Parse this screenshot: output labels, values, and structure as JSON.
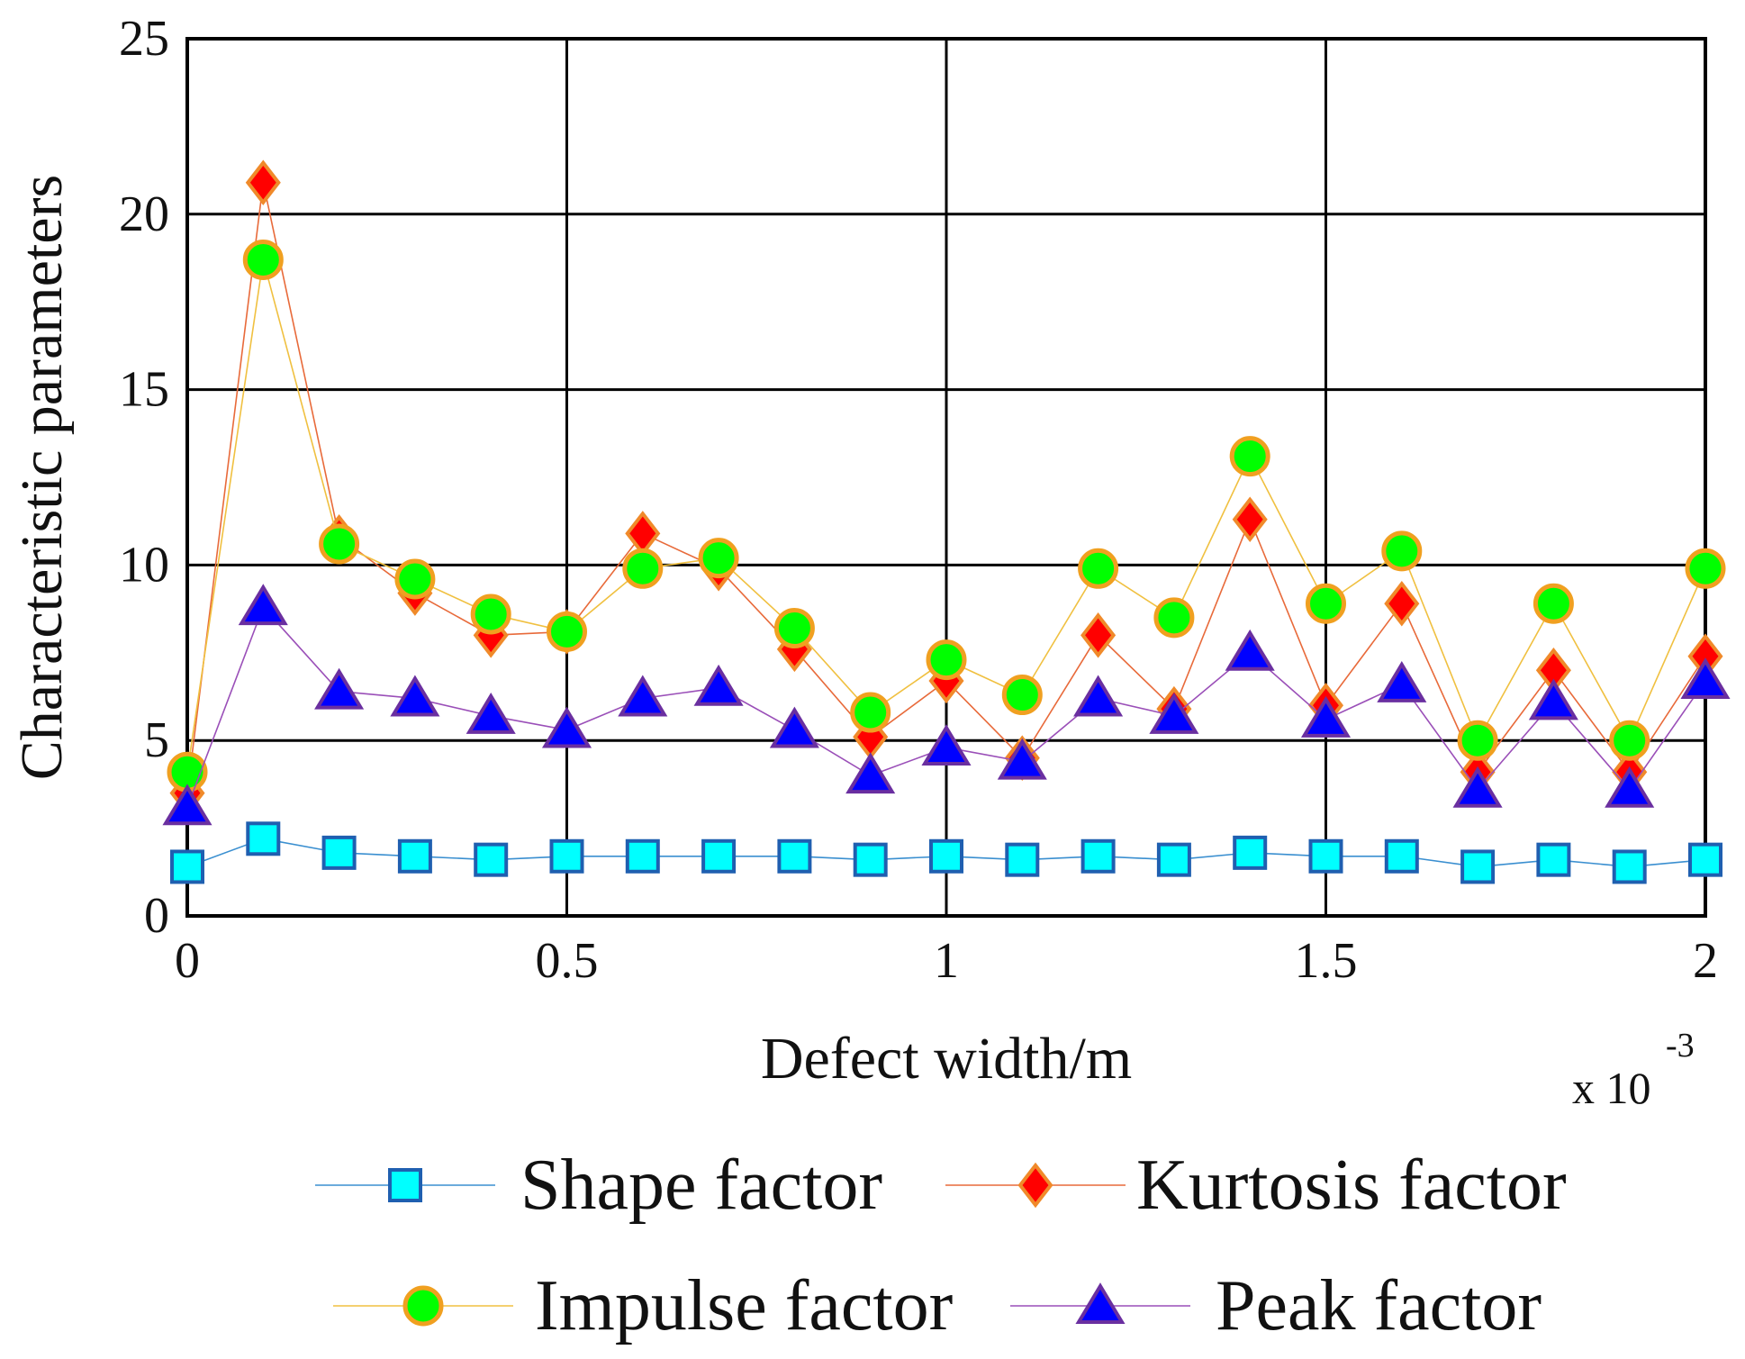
{
  "chart_data": {
    "type": "line",
    "title": "",
    "xlabel": "Defect width/m",
    "ylabel": "Characteristic parameters",
    "x_multiplier_label": "x 10",
    "x_multiplier_exponent": "-3",
    "xlim": [
      0,
      2
    ],
    "ylim": [
      0,
      25
    ],
    "x_ticks": [
      0,
      0.5,
      1,
      1.5,
      2
    ],
    "x_tick_labels": [
      "0",
      "0.5",
      "1",
      "1.5",
      "2"
    ],
    "y_ticks": [
      0,
      5,
      10,
      15,
      20,
      25
    ],
    "y_tick_labels": [
      "0",
      "5",
      "10",
      "15",
      "20",
      "25"
    ],
    "grid": true,
    "legend_position": "bottom",
    "x": [
      0,
      0.1,
      0.2,
      0.3,
      0.4,
      0.5,
      0.6,
      0.7,
      0.8,
      0.9,
      1.0,
      1.1,
      1.2,
      1.3,
      1.4,
      1.5,
      1.6,
      1.7,
      1.8,
      1.9,
      2.0
    ],
    "series": [
      {
        "name": "Shape factor",
        "marker": "square",
        "line_color": "#3a8fd0",
        "marker_fill": "#00ffff",
        "marker_stroke": "#1f5fb0",
        "values": [
          1.4,
          2.2,
          1.8,
          1.7,
          1.6,
          1.7,
          1.7,
          1.7,
          1.7,
          1.6,
          1.7,
          1.6,
          1.7,
          1.6,
          1.8,
          1.7,
          1.7,
          1.4,
          1.6,
          1.4,
          1.6
        ]
      },
      {
        "name": "Kurtosis factor",
        "marker": "diamond",
        "line_color": "#e86a3a",
        "marker_fill": "#ff0000",
        "marker_stroke": "#f08a2a",
        "values": [
          3.5,
          20.9,
          10.8,
          9.2,
          8.0,
          8.1,
          10.9,
          9.9,
          7.6,
          5.1,
          6.7,
          4.5,
          8.0,
          5.9,
          11.3,
          6.0,
          8.9,
          4.1,
          7.0,
          4.1,
          7.4
        ]
      },
      {
        "name": "Impulse factor",
        "marker": "circle",
        "line_color": "#f0c040",
        "marker_fill": "#00ff00",
        "marker_stroke": "#f0a020",
        "values": [
          4.1,
          18.7,
          10.6,
          9.6,
          8.6,
          8.1,
          9.9,
          10.2,
          8.2,
          5.8,
          7.3,
          6.3,
          9.9,
          8.5,
          13.1,
          8.9,
          10.4,
          5.0,
          8.9,
          5.0,
          9.9
        ]
      },
      {
        "name": "Peak factor",
        "marker": "triangle",
        "line_color": "#9a4fb8",
        "marker_fill": "#0000ff",
        "marker_stroke": "#6a2fa0",
        "values": [
          3.1,
          8.8,
          6.4,
          6.2,
          5.7,
          5.3,
          6.2,
          6.5,
          5.3,
          4.0,
          4.8,
          4.4,
          6.2,
          5.7,
          7.5,
          5.6,
          6.6,
          3.6,
          6.1,
          3.6,
          6.7
        ]
      }
    ]
  }
}
